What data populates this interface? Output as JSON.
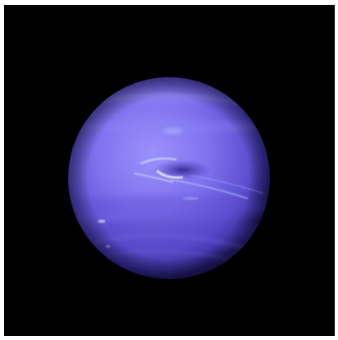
{
  "image": {
    "subject": "planet-photo",
    "colors": {
      "background_frame": "#ffffff",
      "space": "#000000",
      "planet_core": "#8f86f6",
      "planet_mid": "#6e5fe0",
      "planet_limb": "#2d2378",
      "cloud_highlight": "#dfe8ff",
      "storm_dark": "#3a2f9c"
    },
    "icons": [
      "planet-icon"
    ]
  }
}
